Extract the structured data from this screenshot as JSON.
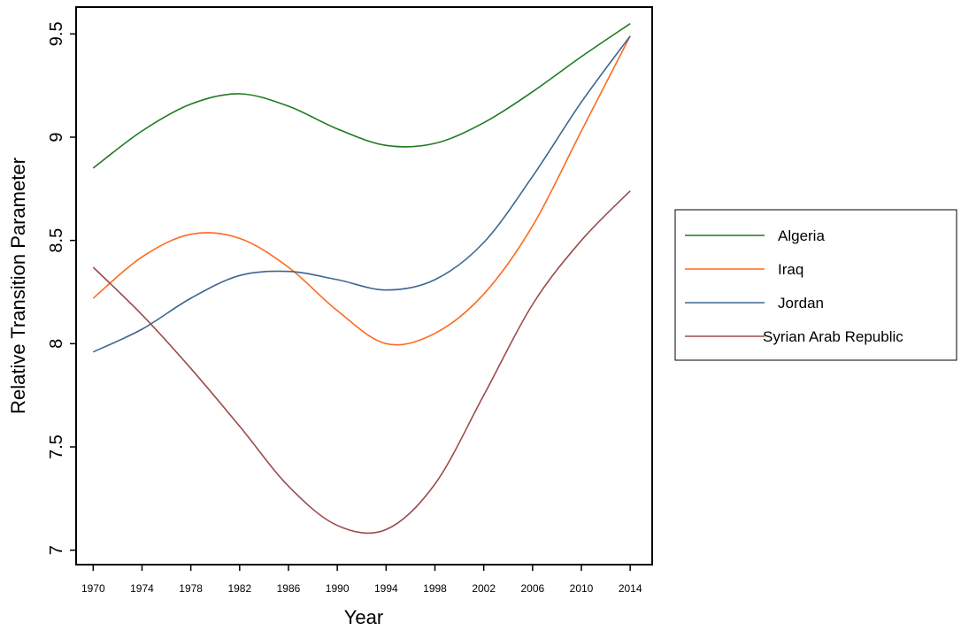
{
  "chart_data": {
    "type": "line",
    "xlabel": "Year",
    "ylabel": "Relative Transition Parameter",
    "xlim": [
      1968.6,
      2015.8
    ],
    "ylim": [
      6.93,
      9.63
    ],
    "x_ticks": [
      1970,
      1974,
      1978,
      1982,
      1986,
      1990,
      1994,
      1998,
      2002,
      2006,
      2010,
      2014
    ],
    "x_tick_labels": [
      "1970",
      "1974",
      "1978",
      "1982",
      "1986",
      "1990",
      "1994",
      "1998",
      "2002",
      "2006",
      "2010",
      "2014"
    ],
    "y_ticks": [
      7,
      7.5,
      8,
      8.5,
      9,
      9.5
    ],
    "y_tick_labels": [
      "7",
      "7.5",
      "8",
      "8.5",
      "9",
      "9.5"
    ],
    "grid": false,
    "legend_position": "right",
    "x": [
      1970,
      1974,
      1978,
      1982,
      1986,
      1990,
      1994,
      1998,
      2002,
      2006,
      2010,
      2014
    ],
    "series": [
      {
        "name": "Algeria",
        "color": "#1f7a1f",
        "values": [
          8.85,
          9.03,
          9.16,
          9.21,
          9.15,
          9.04,
          8.96,
          8.97,
          9.07,
          9.22,
          9.39,
          9.55
        ]
      },
      {
        "name": "Iraq",
        "color": "#ff6a1f",
        "values": [
          8.22,
          8.42,
          8.53,
          8.51,
          8.37,
          8.16,
          8.0,
          8.05,
          8.24,
          8.57,
          9.03,
          9.49
        ]
      },
      {
        "name": "Jordan",
        "color": "#3d6690",
        "values": [
          7.96,
          8.07,
          8.22,
          8.33,
          8.35,
          8.31,
          8.26,
          8.31,
          8.49,
          8.81,
          9.17,
          9.49
        ]
      },
      {
        "name": "Syrian Arab Republic",
        "color": "#9e4a4a",
        "values": [
          8.37,
          8.14,
          7.88,
          7.6,
          7.31,
          7.12,
          7.1,
          7.32,
          7.75,
          8.19,
          8.5,
          8.74
        ]
      }
    ]
  }
}
